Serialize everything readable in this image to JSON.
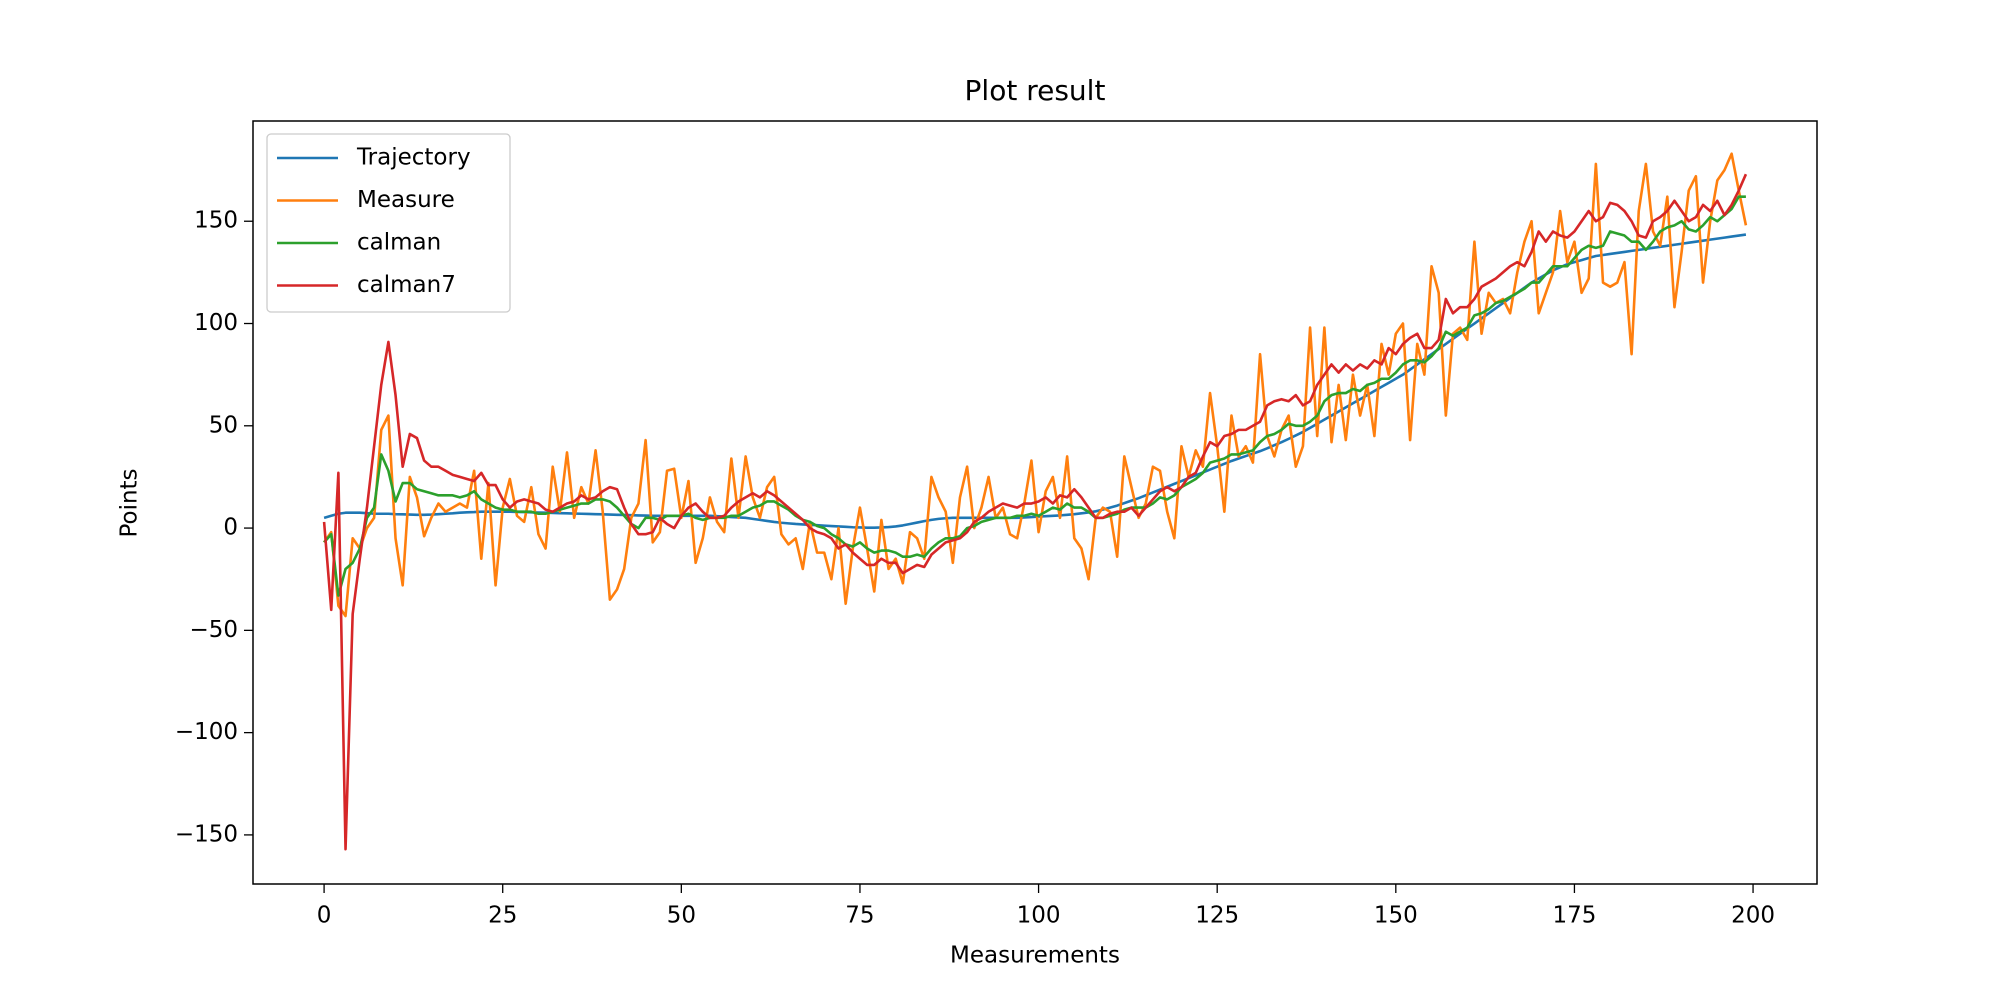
{
  "chart_data": {
    "type": "line",
    "title": "Plot result",
    "x_label": "Measurements",
    "y_label": "Points",
    "x": [
      0,
      1,
      2,
      3,
      4,
      5,
      6,
      7,
      8,
      9,
      10,
      11,
      12,
      13,
      14,
      15,
      16,
      17,
      18,
      19,
      20,
      21,
      22,
      23,
      24,
      25,
      26,
      27,
      28,
      29,
      30,
      31,
      32,
      33,
      34,
      35,
      36,
      37,
      38,
      39,
      40,
      41,
      42,
      43,
      44,
      45,
      46,
      47,
      48,
      49,
      50,
      51,
      52,
      53,
      54,
      55,
      56,
      57,
      58,
      59,
      60,
      61,
      62,
      63,
      64,
      65,
      66,
      67,
      68,
      69,
      70,
      71,
      72,
      73,
      74,
      75,
      76,
      77,
      78,
      79,
      80,
      81,
      82,
      83,
      84,
      85,
      86,
      87,
      88,
      89,
      90,
      91,
      92,
      93,
      94,
      95,
      96,
      97,
      98,
      99,
      100,
      101,
      102,
      103,
      104,
      105,
      106,
      107,
      108,
      109,
      110,
      111,
      112,
      113,
      114,
      115,
      116,
      117,
      118,
      119,
      120,
      121,
      122,
      123,
      124,
      125,
      126,
      127,
      128,
      129,
      130,
      131,
      132,
      133,
      134,
      135,
      136,
      137,
      138,
      139,
      140,
      141,
      142,
      143,
      144,
      145,
      146,
      147,
      148,
      149,
      150,
      151,
      152,
      153,
      154,
      155,
      156,
      157,
      158,
      159,
      160,
      161,
      162,
      163,
      164,
      165,
      166,
      167,
      168,
      169,
      170,
      171,
      172,
      173,
      174,
      175,
      176,
      177,
      178,
      179,
      180,
      181,
      182,
      183,
      184,
      185,
      186,
      187,
      188,
      189,
      190,
      191,
      192,
      193,
      194,
      195,
      196,
      197,
      198,
      199
    ],
    "series": [
      {
        "name": "Trajectory",
        "color": "#1f77b4",
        "values": [
          5,
          6,
          7,
          7.5,
          7.5,
          7.5,
          7.3,
          7,
          7,
          7,
          6.8,
          6.7,
          6.6,
          6.5,
          6.5,
          6.6,
          6.8,
          7,
          7.2,
          7.5,
          7.7,
          7.8,
          8,
          8,
          8,
          8,
          8,
          7.9,
          7.8,
          7.7,
          7.6,
          7.5,
          7.4,
          7.3,
          7.2,
          7.1,
          7,
          6.9,
          6.8,
          6.7,
          6.6,
          6.5,
          6.4,
          6.3,
          6.2,
          6.1,
          6,
          6,
          6,
          6,
          6,
          6,
          6,
          6,
          6,
          5.8,
          5.6,
          5.4,
          5.2,
          5,
          4.5,
          4,
          3.5,
          3,
          2.6,
          2.3,
          2,
          1.8,
          1.6,
          1.4,
          1.2,
          1,
          0.8,
          0.6,
          0.4,
          0.3,
          0.2,
          0.2,
          0.3,
          0.5,
          0.8,
          1.3,
          2,
          2.7,
          3.4,
          4,
          4.5,
          4.8,
          5,
          5,
          5,
          5,
          5,
          5,
          5,
          5,
          5,
          5,
          5.2,
          5.4,
          5.6,
          5.8,
          6,
          6.2,
          6.5,
          6.8,
          7.2,
          7.6,
          8.2,
          9,
          10,
          11,
          12.2,
          13.4,
          14.6,
          16,
          17.4,
          18.8,
          20.2,
          21.6,
          23,
          24.4,
          25.8,
          27.2,
          28.6,
          30,
          31.4,
          32.8,
          34,
          35.2,
          36.4,
          37.6,
          39,
          40.5,
          42,
          43.6,
          45.3,
          47,
          49,
          51,
          53,
          55,
          57,
          59,
          61,
          63,
          65,
          67,
          69,
          71,
          73,
          75,
          77.5,
          80,
          82.5,
          85,
          87.5,
          90,
          92.5,
          95,
          97.5,
          100,
          102.5,
          105,
          107.5,
          110,
          112.5,
          115,
          117.5,
          120,
          122,
          124,
          126,
          127.5,
          129,
          130,
          131,
          132,
          133,
          133.5,
          134,
          134.5,
          135,
          135.5,
          136,
          136.5,
          137,
          137.5,
          138,
          138.5,
          139,
          139.5,
          140,
          140.5,
          141,
          141.5,
          142,
          142.5,
          143,
          143.5
        ]
      },
      {
        "name": "Measure",
        "color": "#ff7f0e",
        "values": [
          -7,
          -2,
          -38,
          -43,
          -5,
          -10,
          0,
          5,
          48,
          55,
          -5,
          -28,
          25,
          15,
          -4,
          5,
          12,
          8,
          10,
          12,
          10,
          28,
          -15,
          22,
          -28,
          10,
          24,
          6,
          3,
          20,
          -3,
          -10,
          30,
          8,
          37,
          5,
          20,
          12,
          38,
          8,
          -35,
          -30,
          -20,
          5,
          12,
          43,
          -7,
          -2,
          28,
          29,
          5,
          23,
          -17,
          -5,
          15,
          3,
          -2,
          34,
          5,
          35,
          15,
          5,
          20,
          25,
          -3,
          -8,
          -5,
          -20,
          3,
          -12,
          -12,
          -25,
          0,
          -37,
          -10,
          10,
          -10,
          -31,
          4,
          -20,
          -15,
          -27,
          -2,
          -5,
          -15,
          25,
          15,
          8,
          -17,
          15,
          30,
          0,
          10,
          25,
          5,
          10,
          -3,
          -5,
          12,
          33,
          -2,
          18,
          25,
          5,
          35,
          -5,
          -10,
          -25,
          5,
          10,
          8,
          -14,
          35,
          20,
          5,
          12,
          30,
          28,
          8,
          -5,
          40,
          25,
          38,
          30,
          66,
          40,
          8,
          55,
          35,
          40,
          32,
          85,
          45,
          35,
          48,
          55,
          30,
          40,
          98,
          45,
          98,
          42,
          70,
          43,
          75,
          55,
          70,
          45,
          90,
          75,
          95,
          100,
          43,
          90,
          75,
          128,
          115,
          55,
          95,
          98,
          92,
          140,
          95,
          115,
          110,
          112,
          105,
          125,
          140,
          150,
          105,
          115,
          125,
          155,
          130,
          140,
          115,
          122,
          178,
          120,
          118,
          120,
          130,
          85,
          155,
          178,
          145,
          138,
          162,
          108,
          135,
          165,
          172,
          120,
          150,
          170,
          175,
          183,
          165,
          148
        ]
      },
      {
        "name": "calman",
        "color": "#2ca02c",
        "values": [
          -7,
          -3,
          -33,
          -20,
          -17,
          -10,
          5,
          10,
          36,
          28,
          13,
          22,
          22,
          19,
          18,
          17,
          16,
          16,
          16,
          15,
          16,
          18,
          14,
          12,
          10,
          9,
          9,
          8,
          8,
          8,
          7,
          7,
          8,
          9,
          10,
          11,
          12,
          12,
          14,
          14,
          13,
          10,
          6,
          2,
          0,
          5,
          5,
          4,
          6,
          6,
          6,
          7,
          5,
          4,
          5,
          5,
          5,
          6,
          6,
          8,
          10,
          11,
          13,
          13,
          11,
          9,
          6,
          4,
          3,
          1,
          0,
          -3,
          -5,
          -8,
          -9,
          -7,
          -10,
          -12,
          -11,
          -11,
          -12,
          -14,
          -14,
          -13,
          -14,
          -10,
          -7,
          -5,
          -5,
          -4,
          0,
          1,
          3,
          4,
          5,
          5,
          5,
          6,
          6,
          7,
          6,
          8,
          10,
          9,
          12,
          10,
          10,
          8,
          5,
          5,
          6,
          7,
          9,
          10,
          10,
          10,
          12,
          15,
          14,
          16,
          20,
          22,
          24,
          27,
          32,
          33,
          34,
          36,
          36,
          37,
          38,
          42,
          45,
          46,
          48,
          51,
          50,
          50,
          52,
          55,
          62,
          65,
          66,
          66,
          68,
          67,
          70,
          71,
          73,
          73,
          76,
          80,
          82,
          82,
          81,
          84,
          88,
          96,
          94,
          96,
          98,
          104,
          105,
          107,
          110,
          111,
          113,
          115,
          117,
          120,
          120,
          124,
          128,
          128,
          128,
          132,
          136,
          138,
          137,
          138,
          145,
          144,
          143,
          140,
          140,
          136,
          140,
          145,
          147,
          148,
          150,
          146,
          145,
          148,
          152,
          150,
          153,
          156,
          162,
          162
        ]
      },
      {
        "name": "calman7",
        "color": "#d62728",
        "values": [
          3,
          -40,
          27,
          -157,
          -42,
          -15,
          10,
          40,
          70,
          91,
          65,
          30,
          46,
          44,
          33,
          30,
          30,
          28,
          26,
          25,
          24,
          23,
          27,
          21,
          21,
          14,
          10,
          13,
          14,
          13,
          12,
          9,
          8,
          10,
          12,
          13,
          16,
          14,
          15,
          18,
          20,
          19,
          10,
          2,
          -3,
          -3,
          -2,
          5,
          2,
          0,
          6,
          10,
          12,
          8,
          5,
          5,
          6,
          10,
          13,
          15,
          17,
          15,
          18,
          16,
          13,
          10,
          7,
          4,
          0,
          -2,
          -3,
          -5,
          -10,
          -8,
          -12,
          -15,
          -18,
          -18,
          -15,
          -17,
          -17,
          -22,
          -20,
          -18,
          -19,
          -13,
          -10,
          -7,
          -6,
          -5,
          -2,
          3,
          5,
          8,
          10,
          12,
          11,
          10,
          12,
          12,
          13,
          15,
          12,
          16,
          15,
          19,
          15,
          10,
          5,
          5,
          7,
          8,
          8,
          10,
          6,
          10,
          14,
          18,
          20,
          18,
          20,
          25,
          27,
          35,
          42,
          40,
          45,
          46,
          48,
          48,
          50,
          52,
          60,
          62,
          63,
          62,
          65,
          60,
          62,
          70,
          75,
          80,
          76,
          80,
          77,
          80,
          78,
          82,
          80,
          88,
          85,
          90,
          93,
          95,
          88,
          88,
          92,
          112,
          105,
          108,
          108,
          112,
          118,
          120,
          122,
          125,
          128,
          130,
          128,
          135,
          145,
          140,
          145,
          143,
          142,
          145,
          150,
          155,
          150,
          152,
          159,
          158,
          155,
          150,
          143,
          142,
          150,
          152,
          155,
          160,
          155,
          150,
          152,
          158,
          155,
          160,
          153,
          158,
          165,
          173
        ]
      }
    ],
    "xlim": [
      -9.95,
      208.95
    ],
    "xticks": [
      0,
      25,
      50,
      75,
      100,
      125,
      150,
      175,
      200
    ],
    "ylim": [
      -174,
      199
    ],
    "yticks": [
      {
        "value": -150,
        "label": "−150"
      },
      {
        "value": -100,
        "label": "−100"
      },
      {
        "value": -50,
        "label": "−50"
      },
      0,
      50,
      100,
      150
    ],
    "legend": "upper left",
    "grid": false
  }
}
